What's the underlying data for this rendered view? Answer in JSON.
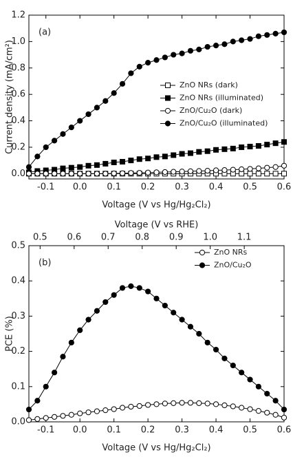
{
  "chart_data": [
    {
      "type": "line",
      "panel_label": "(a)",
      "xlabel": "Voltage (V vs Hg/Hg₂Cl₂)",
      "ylabel": "Current density (mA/cm²)",
      "xlim": [
        -0.15,
        0.6
      ],
      "ylim": [
        -0.04,
        1.2
      ],
      "xticks": [
        -0.1,
        {
          "value": 0,
          "label": "0.0"
        },
        0.1,
        0.2,
        0.3,
        0.4,
        0.5,
        0.6
      ],
      "yticks": [
        {
          "value": 0,
          "label": "0.0"
        },
        0.2,
        0.4,
        0.6,
        0.8,
        {
          "value": 1,
          "label": "1.0"
        },
        1.2
      ],
      "legend": "center right",
      "x": [
        -0.15,
        -0.125,
        -0.1,
        -0.075,
        -0.05,
        -0.025,
        0,
        0.025,
        0.05,
        0.075,
        0.1,
        0.125,
        0.15,
        0.175,
        0.2,
        0.225,
        0.25,
        0.275,
        0.3,
        0.325,
        0.35,
        0.375,
        0.4,
        0.425,
        0.45,
        0.475,
        0.5,
        0.525,
        0.55,
        0.575,
        0.6
      ],
      "series": [
        {
          "name": "ZnO NRs (dark)",
          "color": "#000000",
          "marker": "square",
          "filled": false,
          "values": [
            0,
            0,
            0,
            0,
            0,
            0,
            0,
            0,
            0,
            0,
            0,
            0,
            0,
            0,
            0,
            0,
            0,
            0,
            0,
            0,
            0,
            0,
            0,
            0,
            0,
            0,
            0,
            0,
            0,
            0,
            0
          ]
        },
        {
          "name": "ZnO NRs (illuminated)",
          "color": "#000000",
          "marker": "square",
          "filled": true,
          "values": [
            0.01,
            0.02,
            0.025,
            0.03,
            0.04,
            0.045,
            0.05,
            0.06,
            0.065,
            0.075,
            0.085,
            0.09,
            0.1,
            0.11,
            0.115,
            0.125,
            0.13,
            0.14,
            0.15,
            0.155,
            0.165,
            0.17,
            0.18,
            0.185,
            0.19,
            0.2,
            0.205,
            0.21,
            0.22,
            0.23,
            0.24
          ]
        },
        {
          "name": "ZnO/Cu₂O (dark)",
          "color": "#000000",
          "marker": "circle",
          "filled": false,
          "values": [
            0,
            0,
            0,
            0,
            0,
            0,
            0,
            0,
            0,
            0,
            0.002,
            0.003,
            0.005,
            0.006,
            0.008,
            0.01,
            0.012,
            0.014,
            0.016,
            0.018,
            0.02,
            0.022,
            0.025,
            0.027,
            0.03,
            0.033,
            0.036,
            0.04,
            0.045,
            0.05,
            0.06
          ]
        },
        {
          "name": "ZnO/Cu₂O (illuminated)",
          "color": "#000000",
          "marker": "circle",
          "filled": true,
          "values": [
            0.05,
            0.13,
            0.2,
            0.25,
            0.3,
            0.35,
            0.4,
            0.45,
            0.5,
            0.55,
            0.61,
            0.68,
            0.76,
            0.81,
            0.84,
            0.86,
            0.88,
            0.9,
            0.91,
            0.93,
            0.94,
            0.96,
            0.97,
            0.98,
            1.0,
            1.01,
            1.02,
            1.04,
            1.05,
            1.06,
            1.07
          ]
        }
      ]
    },
    {
      "type": "line",
      "panel_label": "(b)",
      "xlabel": "Voltage (V vs Hg/Hg₂Cl₂)",
      "ylabel": "PCE (%)",
      "x2label": "Voltage (V vs RHE)",
      "xlim": [
        -0.15,
        0.6
      ],
      "ylim": [
        0,
        0.5
      ],
      "x2lim": [
        0.467,
        1.217
      ],
      "xticks": [
        -0.1,
        {
          "value": 0,
          "label": "0.0"
        },
        0.1,
        0.2,
        0.3,
        0.4,
        0.5,
        0.6
      ],
      "x2ticks": [
        0.5,
        0.6,
        0.7,
        0.8,
        0.9,
        {
          "value": 1,
          "label": "1.0"
        },
        1.1
      ],
      "yticks": [
        {
          "value": 0,
          "label": "0.0"
        },
        0.1,
        0.2,
        0.3,
        0.4,
        0.5
      ],
      "legend": "upper right",
      "x": [
        -0.15,
        -0.125,
        -0.1,
        -0.075,
        -0.05,
        -0.025,
        0,
        0.025,
        0.05,
        0.075,
        0.1,
        0.125,
        0.15,
        0.175,
        0.2,
        0.225,
        0.25,
        0.275,
        0.3,
        0.325,
        0.35,
        0.375,
        0.4,
        0.425,
        0.45,
        0.475,
        0.5,
        0.525,
        0.55,
        0.575,
        0.6
      ],
      "series": [
        {
          "name": "ZnO NRs",
          "color": "#000000",
          "marker": "circle",
          "filled": false,
          "values": [
            0.005,
            0.008,
            0.011,
            0.014,
            0.017,
            0.02,
            0.024,
            0.027,
            0.03,
            0.033,
            0.036,
            0.04,
            0.043,
            0.045,
            0.048,
            0.05,
            0.052,
            0.053,
            0.054,
            0.054,
            0.053,
            0.052,
            0.05,
            0.047,
            0.044,
            0.04,
            0.036,
            0.031,
            0.026,
            0.02,
            0.012
          ]
        },
        {
          "name": "ZnO/Cu₂O",
          "color": "#000000",
          "marker": "circle",
          "filled": true,
          "values": [
            0.035,
            0.06,
            0.1,
            0.14,
            0.185,
            0.225,
            0.26,
            0.29,
            0.315,
            0.34,
            0.36,
            0.38,
            0.385,
            0.38,
            0.37,
            0.35,
            0.33,
            0.31,
            0.29,
            0.27,
            0.25,
            0.225,
            0.205,
            0.18,
            0.16,
            0.14,
            0.12,
            0.1,
            0.08,
            0.06,
            0.035
          ]
        }
      ]
    }
  ]
}
